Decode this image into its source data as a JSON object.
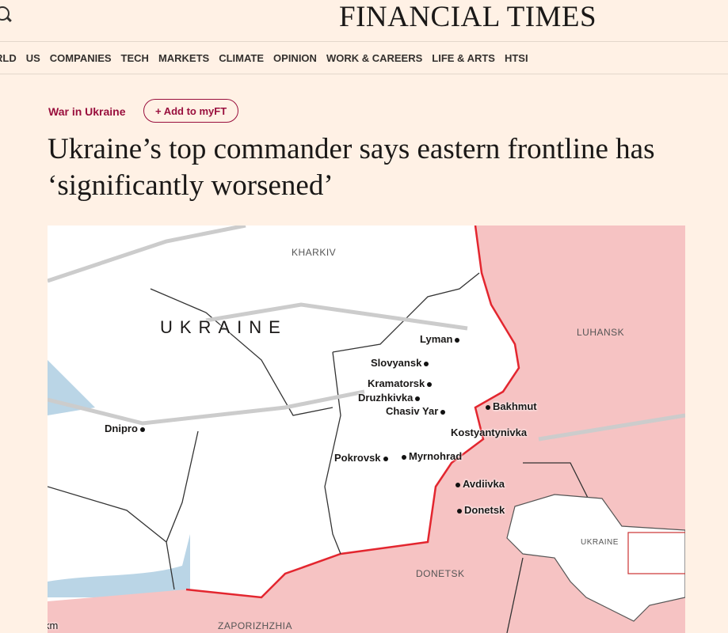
{
  "header": {
    "logo": "FINANCIAL TIMES",
    "search_icon": "search-icon"
  },
  "nav": [
    "RLD",
    "US",
    "COMPANIES",
    "TECH",
    "MARKETS",
    "CLIMATE",
    "OPINION",
    "WORK & CAREERS",
    "LIFE & ARTS",
    "HTSI"
  ],
  "article": {
    "topic": "War in Ukraine",
    "myft": "+ Add to myFT",
    "headline": "Ukraine’s top commander says eastern frontline has ‘significantly worsened’"
  },
  "map": {
    "colors": {
      "occupied": "#f6c3c3",
      "frontline": "#e3262f",
      "water": "#a9cbe0"
    },
    "country": "UKRAINE",
    "regions": {
      "kharkiv": "KHARKIV",
      "luhansk": "LUHANSK",
      "donetsk": "DONETSK",
      "zaporizhzhia": "ZAPORIZHZHIA",
      "inset": "UKRAINE"
    },
    "cities": {
      "lyman": "Lyman",
      "sloviansk": "Slovyansk",
      "kramatorsk": "Kramatorsk",
      "druzhkivka": "Druzhkivka",
      "chasiv_yar": "Chasiv Yar",
      "bakhmut": "Bakhmut",
      "kostyantynivka": "Kostyantynivka",
      "pokrovsk": "Pokrovsk",
      "myrnohrad": "Myrnohrad",
      "avdiivka": "Avdiivka",
      "donetsk": "Donetsk",
      "dnipro": "Dnipro"
    },
    "scale": "km"
  }
}
